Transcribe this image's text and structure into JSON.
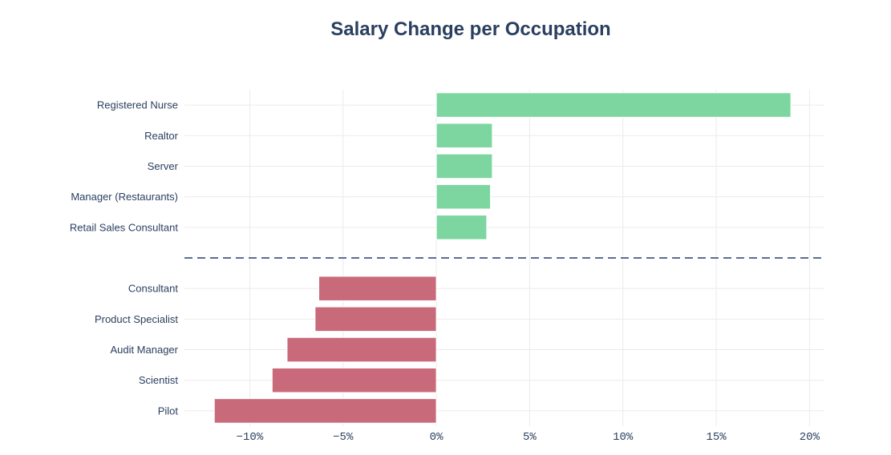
{
  "chart_data": {
    "type": "bar",
    "orientation": "horizontal",
    "title": "Salary Change per Occupation",
    "xlabel": "",
    "ylabel": "",
    "xlim": [
      -13.5,
      20.8
    ],
    "x_ticks": [
      -10,
      -5,
      0,
      5,
      10,
      15,
      20
    ],
    "x_tick_labels": [
      "−10%",
      "−5%",
      "0%",
      "5%",
      "10%",
      "15%",
      "20%"
    ],
    "grid": true,
    "legend": "none",
    "categories": [
      "Registered Nurse",
      "Realtor",
      "Server",
      "Manager (Restaurants)",
      "Retail Sales Consultant",
      "",
      "Consultant",
      "Product Specialist",
      "Audit Manager",
      "Scientist",
      "Pilot"
    ],
    "values": [
      19.0,
      3.0,
      3.0,
      2.9,
      2.7,
      null,
      -6.3,
      -6.5,
      -8.0,
      -8.8,
      -11.9
    ],
    "divider_after_index": 4,
    "colors": {
      "positive": "#7dd6a0",
      "negative": "#c96a7a",
      "grid": "#ebebeb",
      "divider": "#5d6d94",
      "text": "#2a3f5f"
    }
  }
}
